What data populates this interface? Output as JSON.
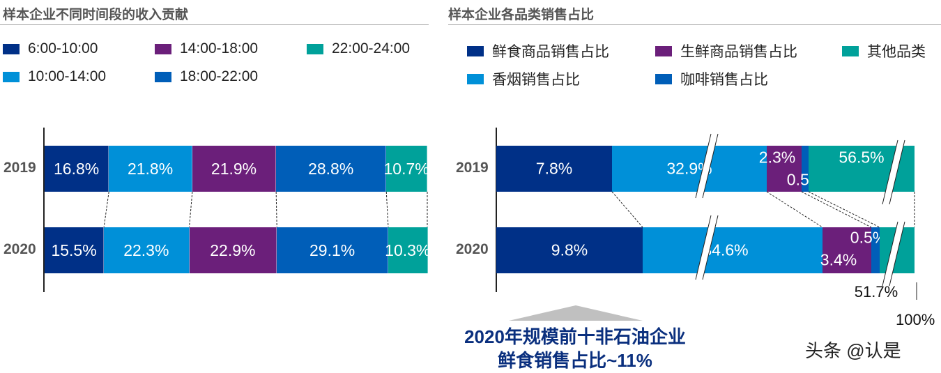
{
  "colors": {
    "navy": "#003087",
    "lightblue": "#0090d8",
    "purple": "#6b1f7a",
    "blue": "#005eb8",
    "teal": "#00a19a"
  },
  "chart_data": [
    {
      "type": "bar",
      "orientation": "horizontal",
      "stacked": true,
      "title": "样本企业不同时间段的收入贡献",
      "categories": [
        "2019",
        "2020"
      ],
      "series": [
        {
          "name": "6:00-10:00",
          "values": [
            16.8,
            15.5
          ],
          "labels": [
            "16.8%",
            "15.5%"
          ],
          "color": "#003087"
        },
        {
          "name": "10:00-14:00",
          "values": [
            21.8,
            22.3
          ],
          "labels": [
            "21.8%",
            "22.3%"
          ],
          "color": "#0090d8"
        },
        {
          "name": "14:00-18:00",
          "values": [
            21.9,
            22.9
          ],
          "labels": [
            "21.9%",
            "22.9%"
          ],
          "color": "#6b1f7a"
        },
        {
          "name": "18:00-22:00",
          "values": [
            28.8,
            29.1
          ],
          "labels": [
            "28.8%",
            "29.1%"
          ],
          "color": "#005eb8"
        },
        {
          "name": "22:00-24:00",
          "values": [
            10.7,
            10.3
          ],
          "labels": [
            "10.7%",
            "10.3%"
          ],
          "color": "#00a19a"
        }
      ],
      "legend": "top"
    },
    {
      "type": "bar",
      "orientation": "horizontal",
      "stacked": true,
      "axis_breaks": true,
      "title": "样本企业各品类销售占比",
      "categories": [
        "2019",
        "2020"
      ],
      "series": [
        {
          "name": "鲜食商品销售占比",
          "values": [
            7.8,
            9.8
          ],
          "labels": [
            "7.8%",
            "9.8%"
          ],
          "color": "#003087"
        },
        {
          "name": "香烟销售占比",
          "values": [
            32.9,
            34.6
          ],
          "labels": [
            "32.9%",
            "34.6%"
          ],
          "color": "#0090d8"
        },
        {
          "name": "生鲜商品销售占比",
          "values": [
            2.3,
            3.4
          ],
          "labels": [
            "2.3%",
            "3.4%"
          ],
          "color": "#6b1f7a"
        },
        {
          "name": "咖啡销售占比",
          "values": [
            0.5,
            0.5
          ],
          "labels": [
            "0.5%",
            "0.5%"
          ],
          "color": "#005eb8"
        },
        {
          "name": "其他品类",
          "values": [
            56.5,
            51.7
          ],
          "labels": [
            "56.5%",
            "51.7%"
          ],
          "color": "#00a19a"
        }
      ],
      "legend": "top",
      "end_label": "100%",
      "annotation": [
        "2020年规模前十非石油企业",
        "鲜食销售占比~11%"
      ]
    }
  ],
  "watermark": "头条 @认是"
}
